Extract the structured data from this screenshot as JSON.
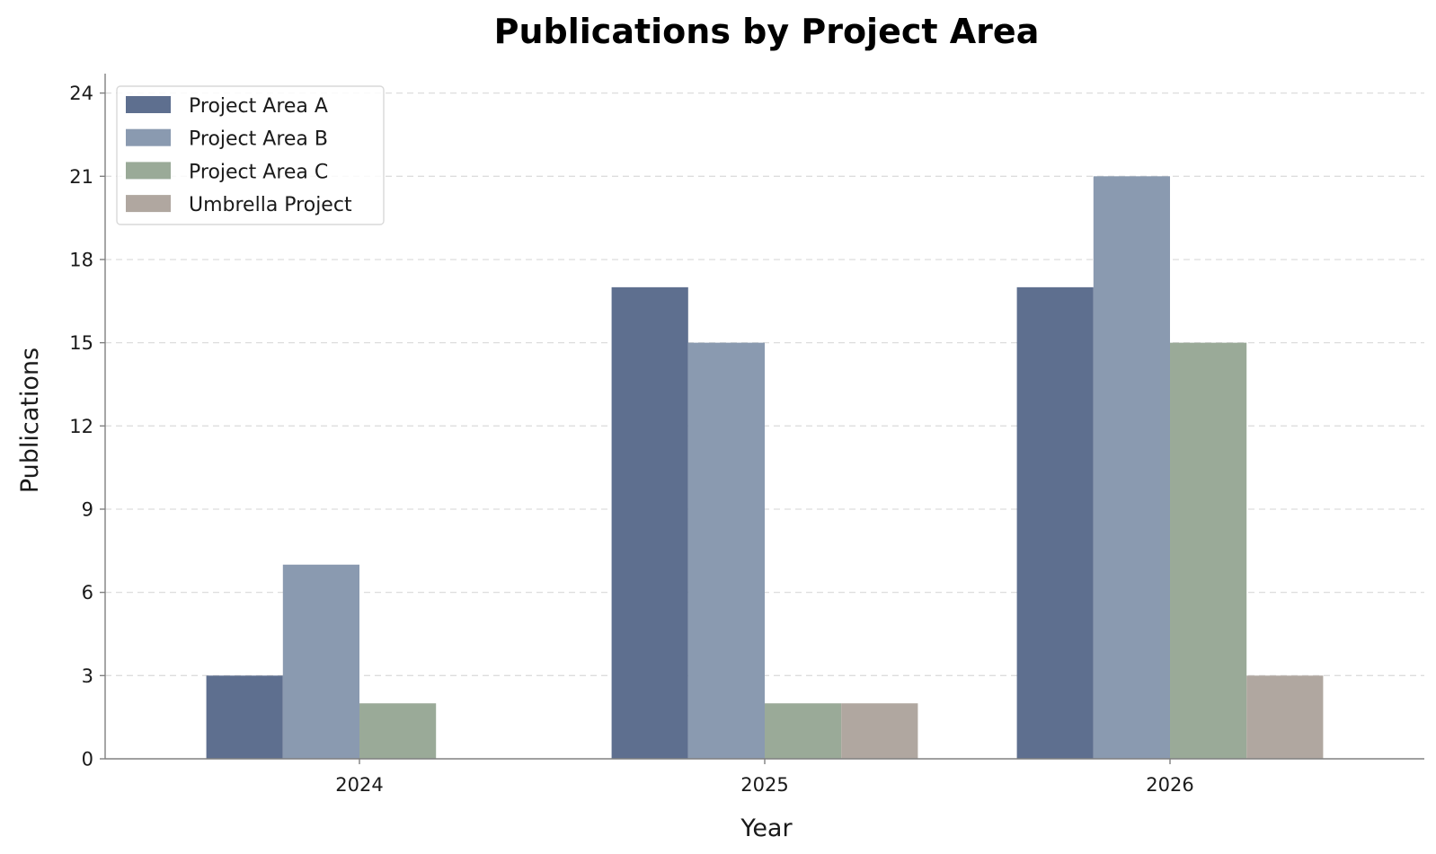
{
  "chart_data": {
    "type": "bar",
    "title": "Publications by Project Area",
    "xlabel": "Year",
    "ylabel": "Publications",
    "categories": [
      "2024",
      "2025",
      "2026"
    ],
    "series": [
      {
        "name": "Project Area A",
        "values": [
          3,
          17,
          17
        ],
        "color": "#5e6f8f"
      },
      {
        "name": "Project Area B",
        "values": [
          7,
          15,
          21
        ],
        "color": "#8a9ab0"
      },
      {
        "name": "Project Area C",
        "values": [
          2,
          2,
          15
        ],
        "color": "#9aaa98"
      },
      {
        "name": "Umbrella Project",
        "values": [
          0,
          2,
          3
        ],
        "color": "#b0a7a0"
      }
    ],
    "ylim": [
      0,
      24.7
    ],
    "yticks": [
      0,
      3,
      6,
      9,
      12,
      15,
      18,
      21,
      24
    ],
    "grid": {
      "y": true,
      "x": false,
      "style": "dashed",
      "color": "#dddddd"
    },
    "legend": {
      "placement": "top-left"
    }
  }
}
